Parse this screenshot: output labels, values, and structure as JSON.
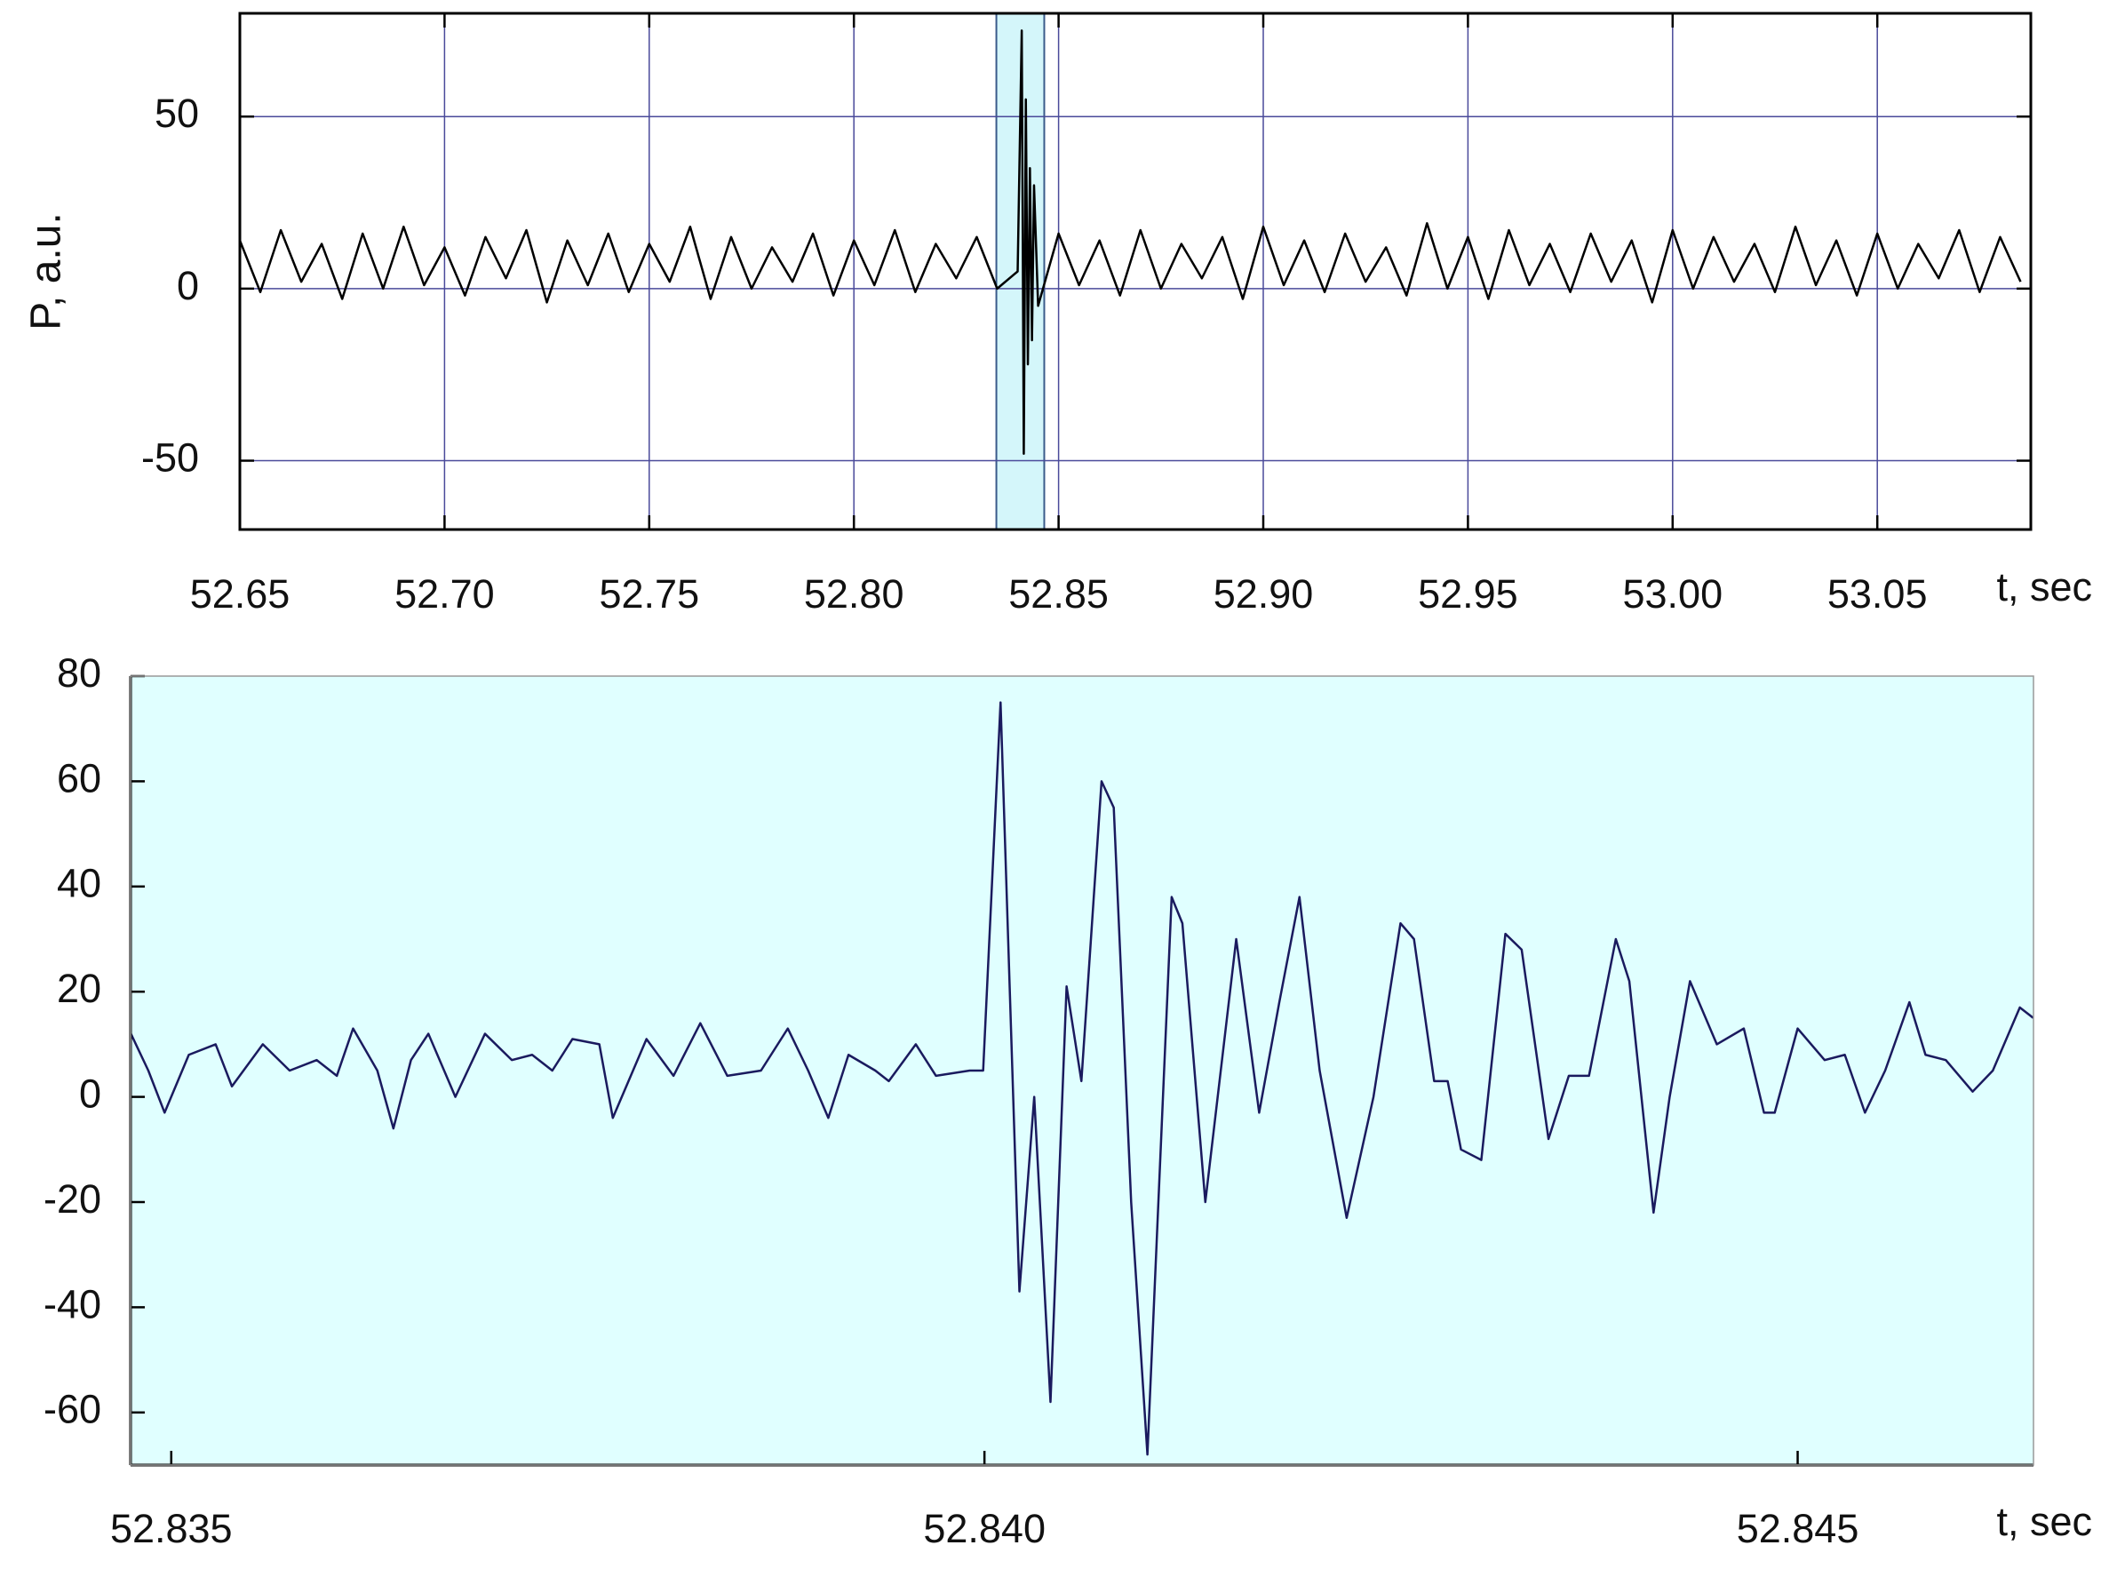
{
  "chart_data": [
    {
      "type": "line",
      "xlabel": "t, sec",
      "ylabel": "P, a.u.",
      "color": "#000000",
      "grid": true,
      "grid_color": "#4a4a9a",
      "highlight": [
        52.8348,
        52.8465
      ],
      "highlight_color": "#d4f6fa",
      "xlim": [
        52.65,
        53.0875
      ],
      "ylim": [
        -70,
        80
      ],
      "xticks": [
        52.65,
        {
          "value": 52.7,
          "label": "52.70"
        },
        52.75,
        {
          "value": 52.8,
          "label": "52.80"
        },
        52.85,
        {
          "value": 52.9,
          "label": "52.90"
        },
        52.95,
        {
          "value": 53,
          "label": "53.00"
        },
        53.05
      ],
      "yticks": [
        -50,
        0,
        50
      ],
      "x": [
        52.65,
        52.655,
        52.66,
        52.665,
        52.67,
        52.675,
        52.68,
        52.685,
        52.69,
        52.695,
        52.7,
        52.705,
        52.71,
        52.715,
        52.72,
        52.725,
        52.73,
        52.735,
        52.74,
        52.745,
        52.75,
        52.755,
        52.76,
        52.765,
        52.77,
        52.775,
        52.78,
        52.785,
        52.79,
        52.795,
        52.8,
        52.805,
        52.81,
        52.815,
        52.82,
        52.825,
        52.83,
        52.835,
        52.84,
        52.841,
        52.8415,
        52.842,
        52.8425,
        52.843,
        52.8435,
        52.844,
        52.845,
        52.85,
        52.855,
        52.86,
        52.865,
        52.87,
        52.875,
        52.88,
        52.885,
        52.89,
        52.895,
        52.9,
        52.905,
        52.91,
        52.915,
        52.92,
        52.925,
        52.93,
        52.935,
        52.94,
        52.945,
        52.95,
        52.955,
        52.96,
        52.965,
        52.97,
        52.975,
        52.98,
        52.985,
        52.99,
        52.995,
        53,
        53.005,
        53.01,
        53.015,
        53.02,
        53.025,
        53.03,
        53.035,
        53.04,
        53.045,
        53.05,
        53.055,
        53.06,
        53.065,
        53.07,
        53.075,
        53.08,
        53.085
      ],
      "values": [
        14,
        -1,
        17,
        2,
        13,
        -3,
        16,
        0,
        18,
        1,
        12,
        -2,
        15,
        3,
        17,
        -4,
        14,
        1,
        16,
        -1,
        13,
        2,
        18,
        -3,
        15,
        0,
        12,
        2,
        16,
        -2,
        14,
        1,
        17,
        -1,
        13,
        3,
        15,
        0,
        5,
        75,
        -48,
        55,
        -22,
        35,
        -15,
        30,
        -5,
        16,
        1,
        14,
        -2,
        17,
        0,
        13,
        3,
        15,
        -3,
        18,
        1,
        14,
        -1,
        16,
        2,
        12,
        -2,
        19,
        0,
        15,
        -3,
        17,
        1,
        13,
        -1,
        16,
        2,
        14,
        -4,
        17,
        0,
        15,
        2,
        13,
        -1,
        18,
        1,
        14,
        -2,
        16,
        0,
        13,
        3,
        17,
        -1,
        15,
        2
      ]
    },
    {
      "type": "line",
      "xlabel": "t, sec",
      "color": "#1a1a5e",
      "grid": false,
      "background": "#e0ffff",
      "xlim": [
        52.83475,
        52.84645
      ],
      "ylim": [
        -70,
        80
      ],
      "xticks": [
        52.835,
        {
          "value": 52.84,
          "label": "52.840"
        },
        52.845
      ],
      "yticks": [
        -60,
        -40,
        -20,
        0,
        20,
        40,
        60,
        80
      ],
      "x": [
        52.834752,
        52.834859,
        52.834959,
        52.835108,
        52.835273,
        52.835373,
        52.835563,
        52.835728,
        52.835894,
        52.836018,
        52.836118,
        52.836267,
        52.836366,
        52.836474,
        52.836581,
        52.836747,
        52.836929,
        52.837094,
        52.837219,
        52.837343,
        52.837467,
        52.837632,
        52.837715,
        52.837922,
        52.838088,
        52.838253,
        52.838419,
        52.838626,
        52.838791,
        52.838916,
        52.83904,
        52.839164,
        52.839329,
        52.839412,
        52.839578,
        52.839702,
        52.839909,
        52.839992,
        52.840099,
        52.840215,
        52.840306,
        52.840406,
        52.840505,
        52.840596,
        52.84072,
        52.840795,
        52.840902,
        52.841002,
        52.841151,
        52.841217,
        52.841358,
        52.841548,
        52.841689,
        52.841813,
        52.841937,
        52.842061,
        52.842227,
        52.842392,
        52.842558,
        52.842641,
        52.842765,
        52.842848,
        52.84293,
        52.843055,
        52.843203,
        52.843303,
        52.843468,
        52.843593,
        52.843717,
        52.843882,
        52.843965,
        52.844114,
        52.844213,
        52.844338,
        52.844503,
        52.844669,
        52.844793,
        52.844859,
        52.845,
        52.845166,
        52.84529,
        52.845414,
        52.845538,
        52.845687,
        52.845786,
        52.845911,
        52.846076,
        52.8462,
        52.846366,
        52.846449
      ],
      "values": [
        12,
        5,
        -3,
        8,
        10,
        2,
        10,
        5,
        7,
        4,
        13,
        5,
        -6,
        7,
        12,
        0,
        12,
        7,
        8,
        5,
        11,
        10,
        -4,
        11,
        4,
        14,
        4,
        5,
        13,
        5,
        -4,
        8,
        5,
        3,
        10,
        4,
        5,
        5,
        75,
        -37,
        0,
        -58,
        21,
        3,
        60,
        55,
        -20,
        -68,
        38,
        33,
        -20,
        30,
        -3,
        18,
        38,
        5,
        -23,
        0,
        33,
        30,
        3,
        3,
        -10,
        -12,
        31,
        28,
        -8,
        4,
        4,
        30,
        22,
        -22,
        0,
        22,
        10,
        13,
        -3,
        -3,
        13,
        7,
        8,
        -3,
        5,
        18,
        8,
        7,
        1,
        5,
        17,
        15
      ]
    }
  ]
}
